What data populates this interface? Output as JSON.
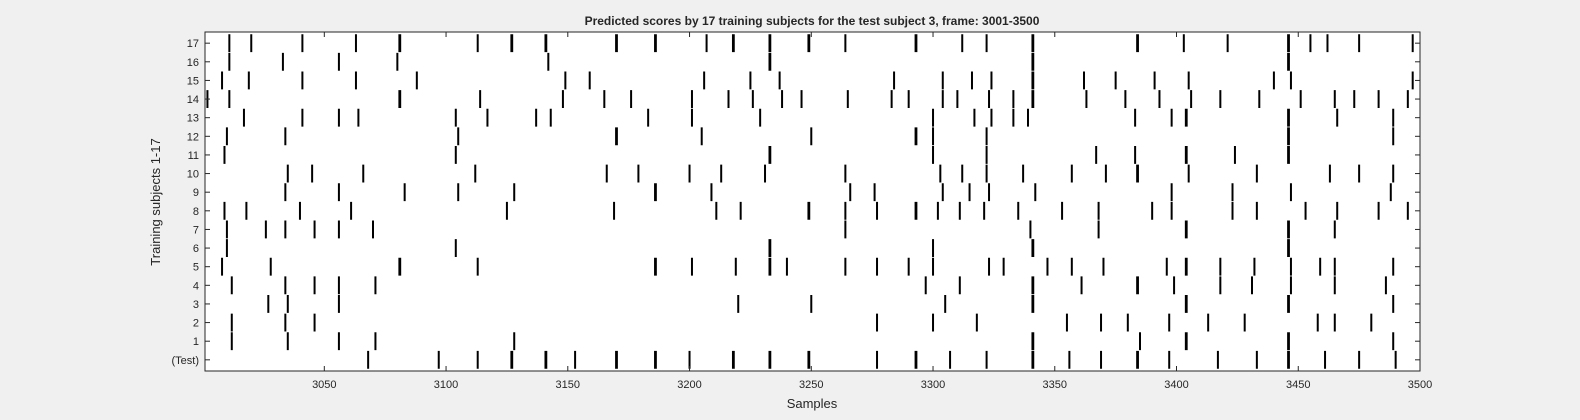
{
  "chart_data": {
    "type": "raster",
    "title": "Predicted scores by 17 training subjects for the test subject 3, frame: 3001-3500",
    "xlabel": "Samples",
    "ylabel": "Training subjects 1-17",
    "xlim": [
      3001,
      3500
    ],
    "xticks": [
      3050,
      3100,
      3150,
      3200,
      3250,
      3300,
      3350,
      3400,
      3450,
      3500
    ],
    "yticklabels": [
      "(Test)",
      "1",
      "2",
      "3",
      "4",
      "5",
      "6",
      "7",
      "8",
      "9",
      "10",
      "11",
      "12",
      "13",
      "14",
      "15",
      "16",
      "17"
    ],
    "common_events": [
      3081,
      3127,
      3141,
      3170,
      3186,
      3218,
      3233,
      3249,
      3293,
      3341,
      3384,
      3404,
      3446
    ],
    "rows": [
      {
        "label": "(Test)",
        "events": [
          3068,
          3097,
          3113,
          3127,
          3141,
          3153,
          3170,
          3186,
          3200,
          3218,
          3233,
          3249,
          3277,
          3293,
          3307,
          3322,
          3341,
          3356,
          3369,
          3384,
          3397,
          3417,
          3433,
          3446,
          3461,
          3475,
          3490
        ]
      },
      {
        "label": "1",
        "events": [
          3012,
          3035,
          3056,
          3071,
          3128,
          3341,
          3385,
          3404,
          3446,
          3489
        ]
      },
      {
        "label": "2",
        "events": [
          3012,
          3034,
          3046,
          3277,
          3300,
          3318,
          3355,
          3369,
          3380,
          3397,
          3413,
          3428,
          3458,
          3465,
          3480
        ]
      },
      {
        "label": "3",
        "events": [
          3027,
          3035,
          3056,
          3220,
          3250,
          3305,
          3341,
          3404,
          3446,
          3489
        ]
      },
      {
        "label": "4",
        "events": [
          3012,
          3034,
          3046,
          3056,
          3071,
          3297,
          3311,
          3341,
          3361,
          3384,
          3399,
          3418,
          3431,
          3447,
          3465,
          3486
        ]
      },
      {
        "label": "5",
        "events": [
          3008,
          3028,
          3081,
          3113,
          3186,
          3201,
          3219,
          3233,
          3240,
          3264,
          3277,
          3290,
          3300,
          3323,
          3329,
          3347,
          3357,
          3370,
          3396,
          3404,
          3418,
          3432,
          3447,
          3459,
          3465,
          3489
        ]
      },
      {
        "label": "6",
        "events": [
          3010,
          3104,
          3233,
          3300,
          3341,
          3446
        ]
      },
      {
        "label": "7",
        "events": [
          3010,
          3026,
          3034,
          3046,
          3056,
          3070,
          3264,
          3340,
          3368,
          3404,
          3446,
          3465
        ]
      },
      {
        "label": "8",
        "events": [
          3009,
          3018,
          3040,
          3061,
          3125,
          3169,
          3211,
          3221,
          3249,
          3264,
          3277,
          3293,
          3302,
          3311,
          3321,
          3335,
          3353,
          3368,
          3390,
          3398,
          3423,
          3433,
          3453,
          3466,
          3483,
          3495
        ]
      },
      {
        "label": "9",
        "events": [
          3034,
          3056,
          3083,
          3105,
          3128,
          3186,
          3209,
          3266,
          3276,
          3304,
          3315,
          3323,
          3342,
          3398,
          3423,
          3447,
          3488
        ]
      },
      {
        "label": "10",
        "events": [
          3035,
          3045,
          3066,
          3112,
          3166,
          3179,
          3200,
          3213,
          3231,
          3264,
          3303,
          3312,
          3322,
          3337,
          3357,
          3371,
          3384,
          3405,
          3433,
          3463,
          3475,
          3489
        ]
      },
      {
        "label": "11",
        "events": [
          3009,
          3104,
          3233,
          3300,
          3322,
          3367,
          3383,
          3404,
          3424,
          3446
        ]
      },
      {
        "label": "12",
        "events": [
          3010,
          3034,
          3105,
          3170,
          3205,
          3250,
          3293,
          3300,
          3322,
          3446,
          3489
        ]
      },
      {
        "label": "13",
        "events": [
          3017,
          3041,
          3056,
          3064,
          3104,
          3117,
          3137,
          3143,
          3183,
          3201,
          3229,
          3300,
          3317,
          3324,
          3333,
          3339,
          3383,
          3398,
          3404,
          3446,
          3466,
          3489
        ]
      },
      {
        "label": "14",
        "events": [
          3002,
          3011,
          3081,
          3114,
          3148,
          3165,
          3176,
          3201,
          3216,
          3226,
          3238,
          3246,
          3265,
          3283,
          3290,
          3304,
          3310,
          3323,
          3333,
          3341,
          3363,
          3379,
          3393,
          3406,
          3418,
          3434,
          3451,
          3465,
          3473,
          3483,
          3495
        ]
      },
      {
        "label": "15",
        "events": [
          3008,
          3019,
          3041,
          3063,
          3088,
          3149,
          3159,
          3206,
          3225,
          3237,
          3284,
          3304,
          3316,
          3324,
          3341,
          3362,
          3375,
          3391,
          3405,
          3440,
          3447,
          3497
        ]
      },
      {
        "label": "16",
        "events": [
          3011,
          3033,
          3056,
          3080,
          3142,
          3233,
          3341,
          3446
        ]
      },
      {
        "label": "17",
        "events": [
          3011,
          3020,
          3041,
          3063,
          3081,
          3113,
          3127,
          3141,
          3170,
          3186,
          3207,
          3218,
          3233,
          3249,
          3264,
          3293,
          3312,
          3322,
          3341,
          3384,
          3403,
          3421,
          3446,
          3455,
          3462,
          3475,
          3497
        ]
      }
    ]
  }
}
